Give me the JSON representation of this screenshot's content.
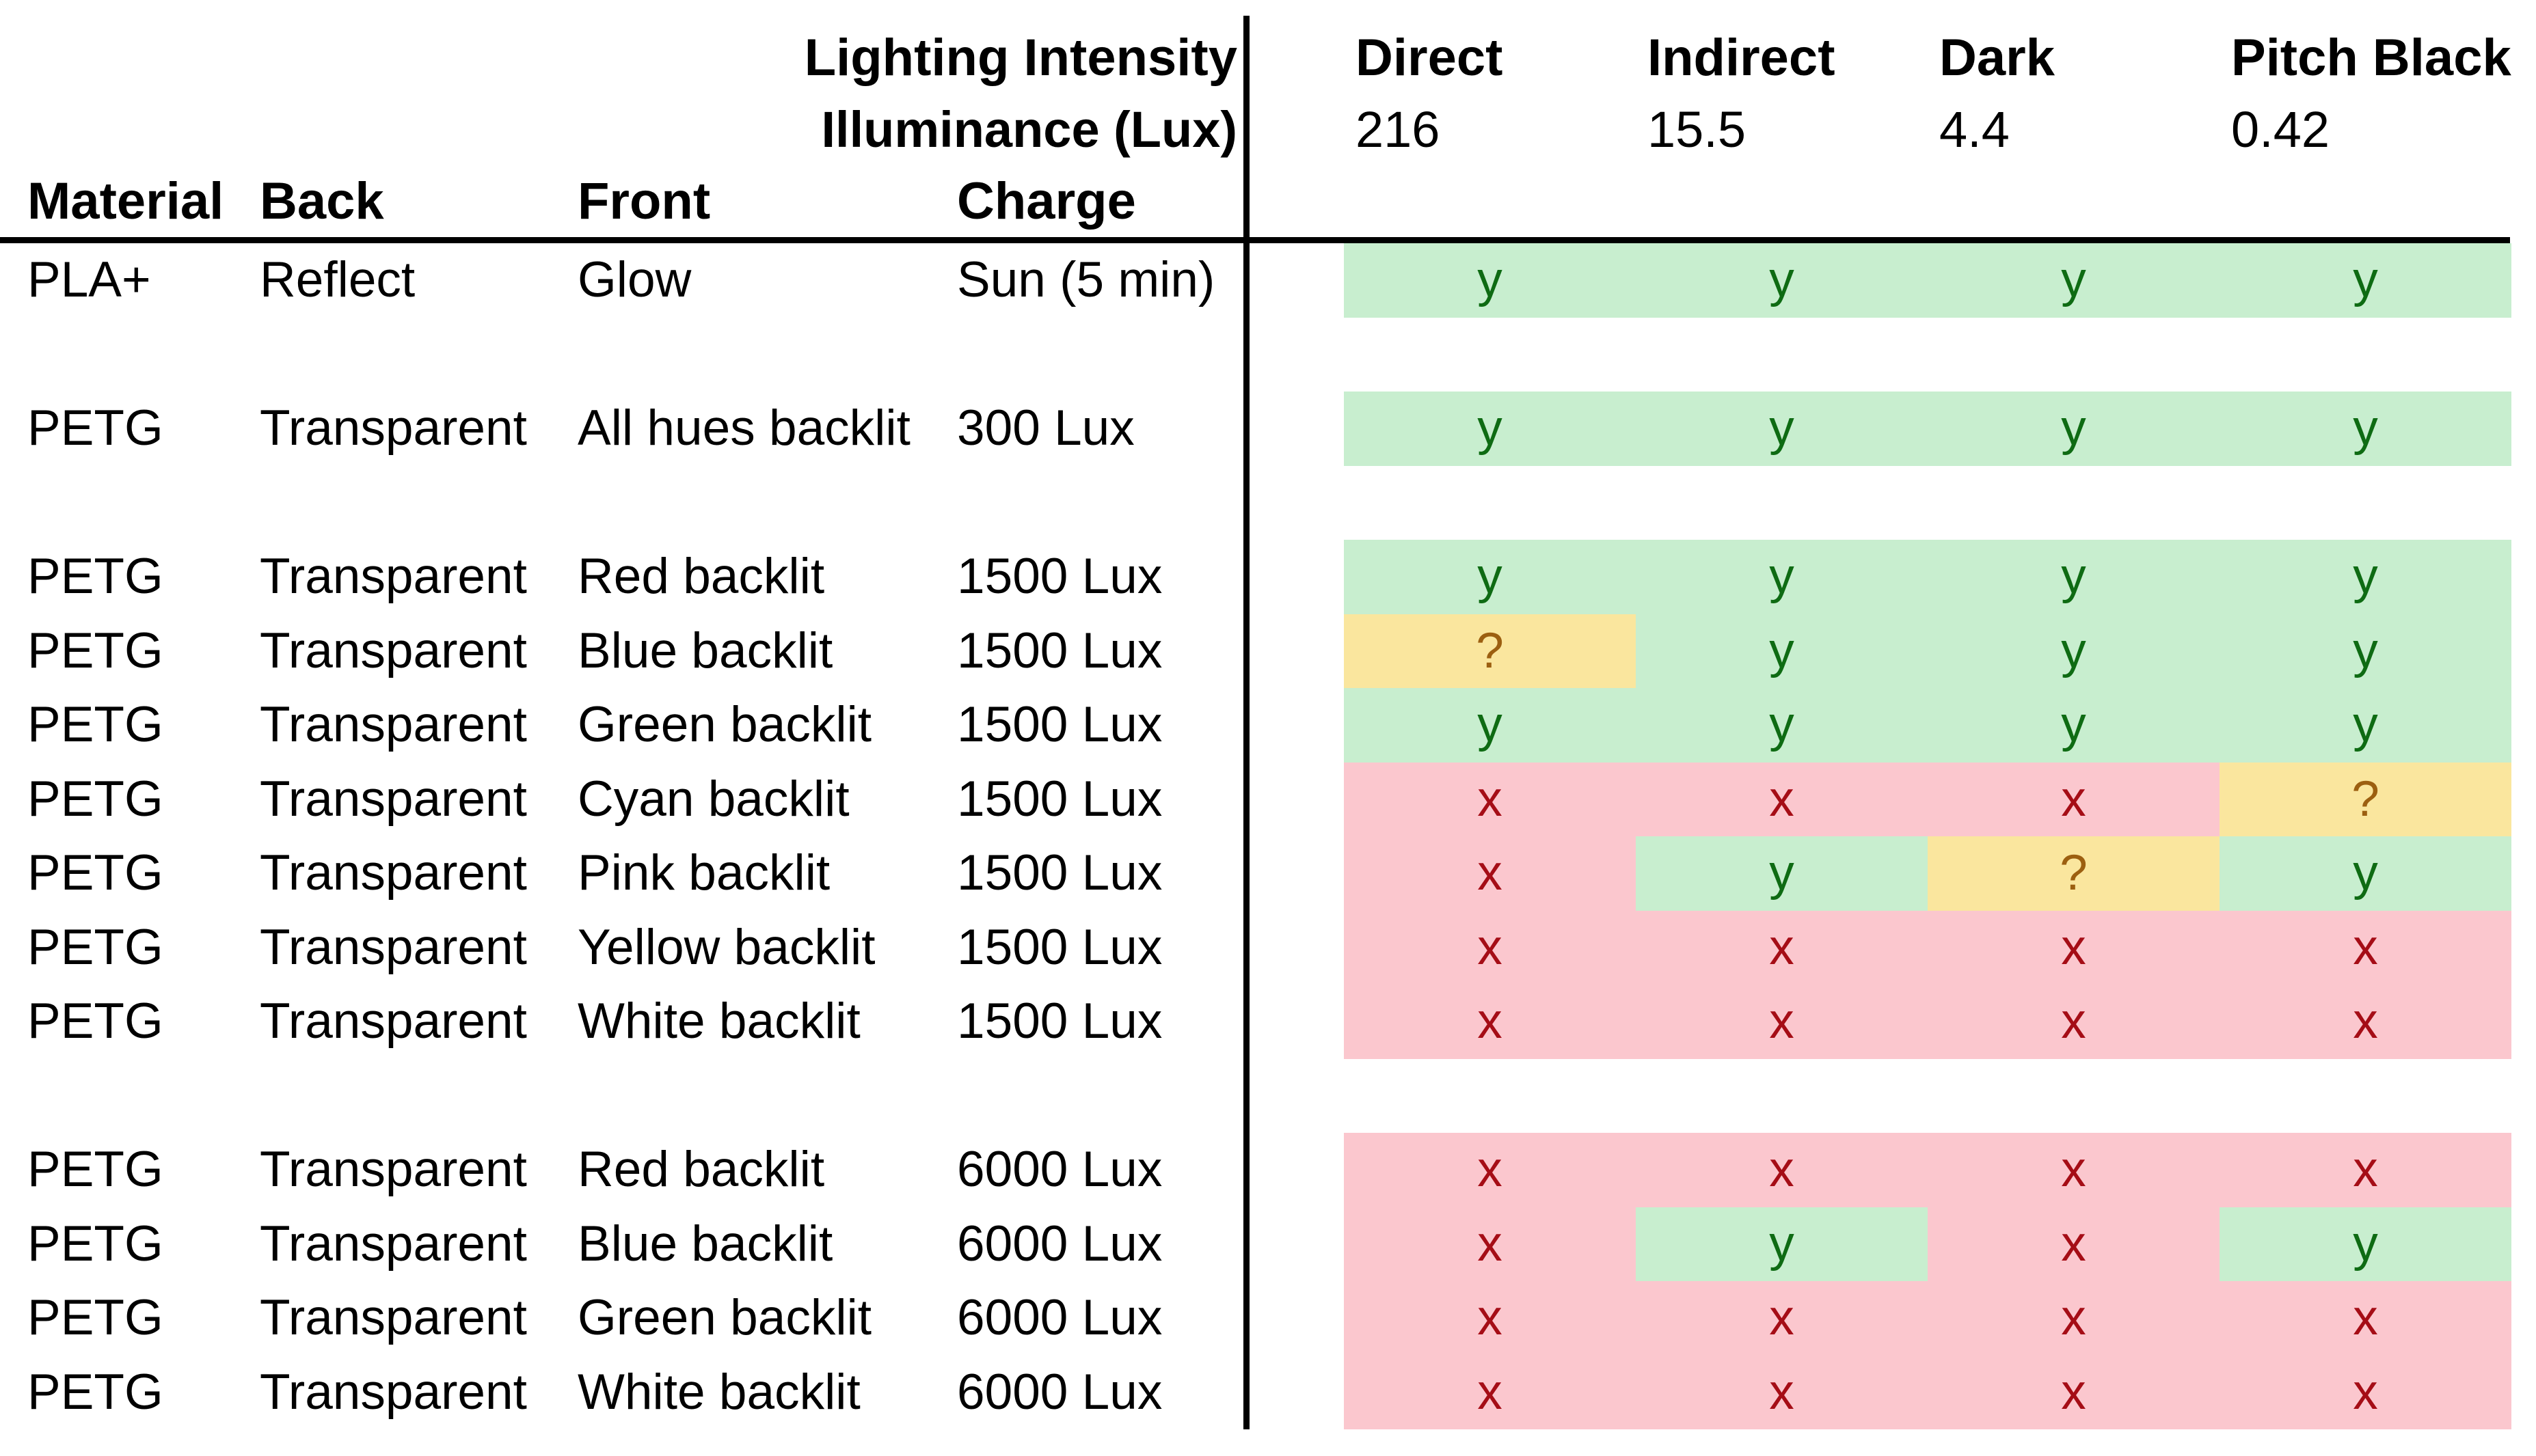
{
  "table": {
    "corner_header": {
      "line1": "Lighting Intensity",
      "line2": "Illuminance (Lux)"
    },
    "light_columns": [
      {
        "label": "Direct",
        "illuminance": "216"
      },
      {
        "label": "Indirect",
        "illuminance": "15.5"
      },
      {
        "label": "Dark",
        "illuminance": "4.4"
      },
      {
        "label": "Pitch Black",
        "illuminance": "0.42"
      }
    ],
    "left_headers": {
      "material": "Material",
      "back": "Back",
      "front": "Front",
      "charge": "Charge"
    },
    "status_styles": {
      "y": {
        "glyph": "y",
        "fill": "#C8EECF",
        "text": "#0E6B13"
      },
      "x": {
        "glyph": "x",
        "fill": "#FBC7CE",
        "text": "#A50D16"
      },
      "?": {
        "glyph": "?",
        "fill": "#FAE69E",
        "text": "#9C5F10"
      }
    },
    "rows": [
      {
        "material": "PLA+",
        "back": "Reflect",
        "front": "Glow",
        "charge": "Sun (5 min)",
        "results": [
          "y",
          "y",
          "y",
          "y"
        ]
      },
      {
        "blank": true
      },
      {
        "material": "PETG",
        "back": "Transparent",
        "front": "All hues backlit",
        "charge": "300 Lux",
        "results": [
          "y",
          "y",
          "y",
          "y"
        ]
      },
      {
        "blank": true
      },
      {
        "material": "PETG",
        "back": "Transparent",
        "front": "Red backlit",
        "charge": "1500 Lux",
        "results": [
          "y",
          "y",
          "y",
          "y"
        ]
      },
      {
        "material": "PETG",
        "back": "Transparent",
        "front": "Blue backlit",
        "charge": "1500 Lux",
        "results": [
          "?",
          "y",
          "y",
          "y"
        ]
      },
      {
        "material": "PETG",
        "back": "Transparent",
        "front": "Green backlit",
        "charge": "1500 Lux",
        "results": [
          "y",
          "y",
          "y",
          "y"
        ]
      },
      {
        "material": "PETG",
        "back": "Transparent",
        "front": "Cyan backlit",
        "charge": "1500 Lux",
        "results": [
          "x",
          "x",
          "x",
          "?"
        ]
      },
      {
        "material": "PETG",
        "back": "Transparent",
        "front": "Pink backlit",
        "charge": "1500 Lux",
        "results": [
          "x",
          "y",
          "?",
          "y"
        ]
      },
      {
        "material": "PETG",
        "back": "Transparent",
        "front": "Yellow backlit",
        "charge": "1500 Lux",
        "results": [
          "x",
          "x",
          "x",
          "x"
        ]
      },
      {
        "material": "PETG",
        "back": "Transparent",
        "front": "White backlit",
        "charge": "1500 Lux",
        "results": [
          "x",
          "x",
          "x",
          "x"
        ]
      },
      {
        "blank": true
      },
      {
        "material": "PETG",
        "back": "Transparent",
        "front": "Red backlit",
        "charge": "6000 Lux",
        "results": [
          "x",
          "x",
          "x",
          "x"
        ]
      },
      {
        "material": "PETG",
        "back": "Transparent",
        "front": "Blue backlit",
        "charge": "6000 Lux",
        "results": [
          "x",
          "y",
          "x",
          "y"
        ]
      },
      {
        "material": "PETG",
        "back": "Transparent",
        "front": "Green backlit",
        "charge": "6000 Lux",
        "results": [
          "x",
          "x",
          "x",
          "x"
        ]
      },
      {
        "material": "PETG",
        "back": "Transparent",
        "front": "White backlit",
        "charge": "6000 Lux",
        "results": [
          "x",
          "x",
          "x",
          "x"
        ]
      }
    ]
  }
}
